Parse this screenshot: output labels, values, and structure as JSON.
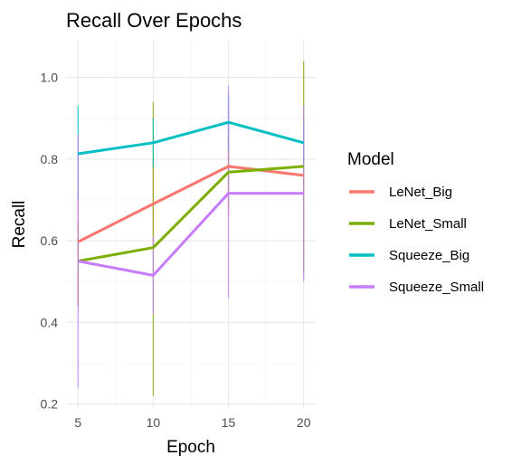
{
  "chart_data": {
    "type": "line",
    "title": "Recall Over Epochs",
    "xlabel": "Epoch",
    "ylabel": "Recall",
    "x": [
      5,
      10,
      15,
      20
    ],
    "x_ticks": [
      "5",
      "10",
      "15",
      "20"
    ],
    "y_ticks": [
      "0.2",
      "0.4",
      "0.6",
      "0.8",
      "1.0"
    ],
    "xlim": [
      4.2,
      20.8
    ],
    "ylim": [
      0.19,
      1.09
    ],
    "grid": true,
    "legend": {
      "title": "Model",
      "position": "right"
    },
    "series": [
      {
        "name": "LeNet_Big",
        "color": "#f8766d",
        "values": [
          0.597,
          0.69,
          0.782,
          0.76
        ],
        "error": [
          [
            0.44,
            0.75
          ],
          [
            0.59,
            0.8
          ],
          [
            0.66,
            0.93
          ],
          [
            0.55,
            0.93
          ]
        ]
      },
      {
        "name": "LeNet_Small",
        "color": "#7cae00",
        "values": [
          0.55,
          0.583,
          0.768,
          0.782
        ],
        "error": [
          [
            0.44,
            0.65
          ],
          [
            0.22,
            0.94
          ],
          [
            0.68,
            0.85
          ],
          [
            0.52,
            1.04
          ]
        ]
      },
      {
        "name": "Squeeze_Big",
        "color": "#00bfc4",
        "values": [
          0.813,
          0.84,
          0.89,
          0.84
        ],
        "error": [
          [
            0.7,
            0.93
          ],
          [
            0.78,
            0.9
          ],
          [
            0.82,
            0.96
          ],
          [
            0.79,
            0.89
          ]
        ]
      },
      {
        "name": "Squeeze_Small",
        "color": "#c77cff",
        "values": [
          0.55,
          0.515,
          0.716,
          0.716
        ],
        "error": [
          [
            0.24,
            0.86
          ],
          [
            0.42,
            0.61
          ],
          [
            0.46,
            0.98
          ],
          [
            0.5,
            0.93
          ]
        ]
      }
    ]
  }
}
